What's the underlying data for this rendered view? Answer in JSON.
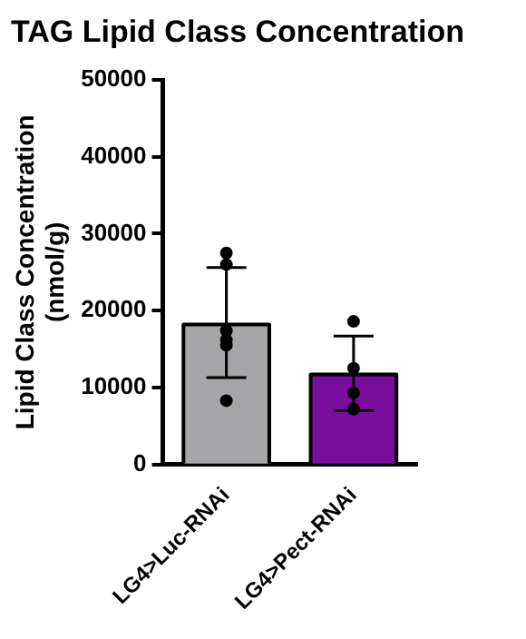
{
  "chart_data": {
    "type": "bar",
    "title": "TAG Lipid Class Concentration",
    "ylabel": "Lipid Class Concentration\n(nmol/g)",
    "categories": [
      "LG4>Luc-RNAi",
      "LG4>Pect-RNAi"
    ],
    "series": [
      {
        "type": "bar",
        "colors": [
          "#a6a6a8",
          "#7a0d9e"
        ],
        "values": [
          18200,
          11700
        ],
        "errors": [
          [
            11300,
            25600
          ],
          [
            7000,
            16700
          ]
        ]
      },
      {
        "type": "scatter",
        "color": "#000000",
        "x": [
          "LG4>Luc-RNAi",
          "LG4>Luc-RNAi",
          "LG4>Luc-RNAi",
          "LG4>Luc-RNAi",
          "LG4>Luc-RNAi",
          "LG4>Luc-RNAi",
          "LG4>Pect-RNAi",
          "LG4>Pect-RNAi",
          "LG4>Pect-RNAi",
          "LG4>Pect-RNAi"
        ],
        "values": [
          26000,
          27500,
          17400,
          16200,
          15500,
          8300,
          18600,
          12500,
          9300,
          7200
        ],
        "marker": "circle"
      }
    ],
    "ylim": [
      0,
      50000
    ],
    "yticks": [
      0,
      10000,
      20000,
      30000,
      40000,
      50000
    ],
    "grid": false,
    "legend": false
  }
}
